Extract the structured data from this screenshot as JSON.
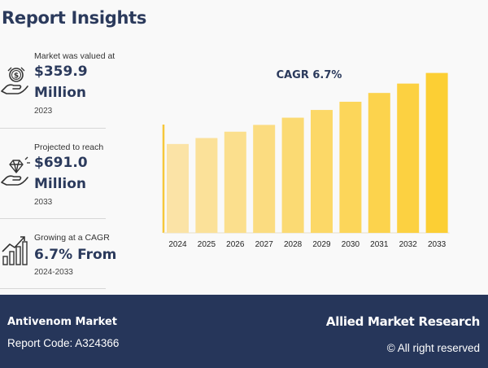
{
  "header": {
    "title": "Report Insights"
  },
  "stats": [
    {
      "label": "Market was valued at",
      "value_line1": "$359.9",
      "value_line2": "Million",
      "year": "2023",
      "icon": "money-hand-icon"
    },
    {
      "label": "Projected to reach",
      "value_line1": "$691.0",
      "value_line2": "Million",
      "year": "2033",
      "icon": "diamond-hand-icon"
    },
    {
      "label": "Growing at a CAGR",
      "value_line1": "6.7% From",
      "year": "2024-2033",
      "icon": "growth-chart-icon"
    }
  ],
  "chart_data": {
    "type": "bar",
    "title": "CAGR 6.7%",
    "categories": [
      "2024",
      "2025",
      "2026",
      "2027",
      "2028",
      "2029",
      "2030",
      "2031",
      "2032",
      "2033"
    ],
    "values": [
      384.0,
      409.7,
      437.2,
      466.5,
      497.7,
      531.1,
      566.6,
      604.6,
      645.1,
      691.0
    ],
    "ylim": [
      0,
      760
    ],
    "bar_color_start": "#fbe3a6",
    "bar_color_end": "#fccf34",
    "axis_color": "#f6c73a"
  },
  "footer": {
    "market": "Antivenom Market",
    "report_code": "Report Code: A324366",
    "brand": "Allied Market Research",
    "rights": "© All right reserved"
  },
  "colors": {
    "navy": "#26365a",
    "heading": "#2b3a5c"
  }
}
